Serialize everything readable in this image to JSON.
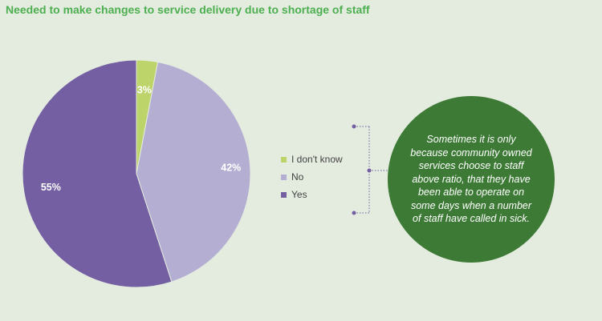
{
  "title": "Needed to make changes to service delivery due to shortage of staff",
  "chart_data": {
    "type": "pie",
    "title": "Needed to make changes to service delivery due to shortage of staff",
    "slices": [
      {
        "label": "I don't know",
        "value": 3,
        "display": "3%",
        "color": "#bcd46a"
      },
      {
        "label": "No",
        "value": 42,
        "display": "42%",
        "color": "#b5aed3"
      },
      {
        "label": "Yes",
        "value": 55,
        "display": "55%",
        "color": "#735fa2"
      }
    ],
    "legend_position": "right"
  },
  "callout": {
    "text": "Sometimes it is only because community owned services choose to staff above ratio, that they have been able to operate on some days when a number of staff have called in sick.",
    "color": "#3d7a36"
  },
  "colors": {
    "title": "#4caf50",
    "bracket": "#735fa2"
  }
}
